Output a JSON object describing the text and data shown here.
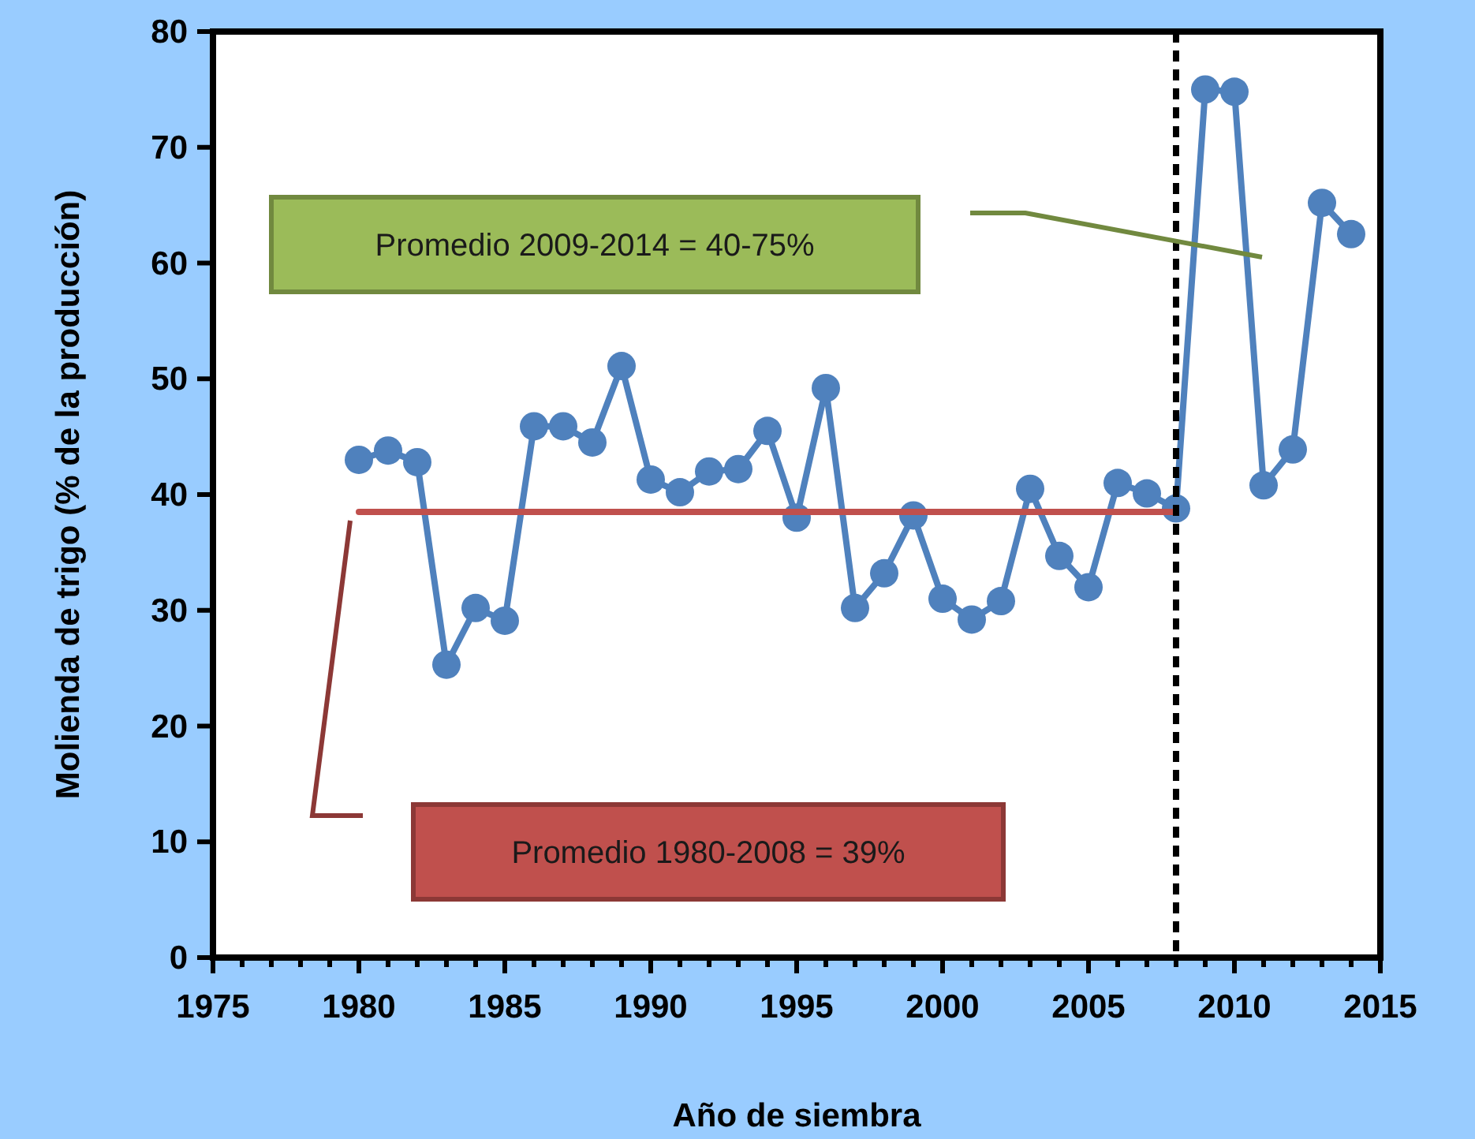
{
  "chart_data": {
    "type": "line",
    "xlabel": "Año de siembra",
    "ylabel": "Molienda de trigo (% de la producción)",
    "x": [
      1980,
      1981,
      1982,
      1983,
      1984,
      1985,
      1986,
      1987,
      1988,
      1989,
      1990,
      1991,
      1992,
      1993,
      1994,
      1995,
      1996,
      1997,
      1998,
      1999,
      2000,
      2001,
      2002,
      2003,
      2004,
      2005,
      2006,
      2007,
      2008,
      2009,
      2010,
      2011,
      2012,
      2013,
      2014
    ],
    "series": [
      {
        "color": "#4f81bd",
        "marker": "circle",
        "values": [
          43,
          43.8,
          42.8,
          25.3,
          30.2,
          29.1,
          45.9,
          45.9,
          44.5,
          51.1,
          41.3,
          40.2,
          42,
          42.2,
          45.5,
          38,
          49.2,
          30.2,
          33.2,
          38.2,
          31,
          29.2,
          30.8,
          40.5,
          34.7,
          32,
          41,
          40.1,
          38.8,
          75,
          74.8,
          40.8,
          43.9,
          65.2,
          62.5
        ]
      },
      {
        "color": "#c0504d",
        "marker": "none",
        "x": [
          1980,
          2008
        ],
        "values": [
          38.5,
          38.5
        ]
      }
    ],
    "ref_lines": [
      {
        "axis": "x",
        "value": 2008,
        "color": "#000000",
        "line_style": "dashed"
      }
    ],
    "annotations": [
      "Promedio 2009-2014 = 40-75%",
      "Promedio 1980-2008 = 39%"
    ],
    "xlim": [
      1975,
      2015
    ],
    "ylim": [
      0,
      80
    ],
    "xticks": [
      1975,
      {
        "value": 1976,
        "label": null
      },
      {
        "value": 1977,
        "label": null
      },
      {
        "value": 1978,
        "label": null
      },
      {
        "value": 1979,
        "label": null
      },
      1980,
      {
        "value": 1981,
        "label": null
      },
      {
        "value": 1982,
        "label": null
      },
      {
        "value": 1983,
        "label": null
      },
      {
        "value": 1984,
        "label": null
      },
      1985,
      {
        "value": 1986,
        "label": null
      },
      {
        "value": 1987,
        "label": null
      },
      {
        "value": 1988,
        "label": null
      },
      {
        "value": 1989,
        "label": null
      },
      1990,
      {
        "value": 1991,
        "label": null
      },
      {
        "value": 1992,
        "label": null
      },
      {
        "value": 1993,
        "label": null
      },
      {
        "value": 1994,
        "label": null
      },
      1995,
      {
        "value": 1996,
        "label": null
      },
      {
        "value": 1997,
        "label": null
      },
      {
        "value": 1998,
        "label": null
      },
      {
        "value": 1999,
        "label": null
      },
      2000,
      {
        "value": 2001,
        "label": null
      },
      {
        "value": 2002,
        "label": null
      },
      {
        "value": 2003,
        "label": null
      },
      {
        "value": 2004,
        "label": null
      },
      2005,
      {
        "value": 2006,
        "label": null
      },
      {
        "value": 2007,
        "label": null
      },
      {
        "value": 2008,
        "label": null
      },
      {
        "value": 2009,
        "label": null
      },
      2010,
      {
        "value": 2011,
        "label": null
      },
      {
        "value": 2012,
        "label": null
      },
      {
        "value": 2013,
        "label": null
      },
      {
        "value": 2014,
        "label": null
      },
      2015
    ],
    "yticks": [
      0,
      10,
      20,
      30,
      40,
      50,
      60,
      70,
      80
    ],
    "tick_labels": "xy"
  }
}
